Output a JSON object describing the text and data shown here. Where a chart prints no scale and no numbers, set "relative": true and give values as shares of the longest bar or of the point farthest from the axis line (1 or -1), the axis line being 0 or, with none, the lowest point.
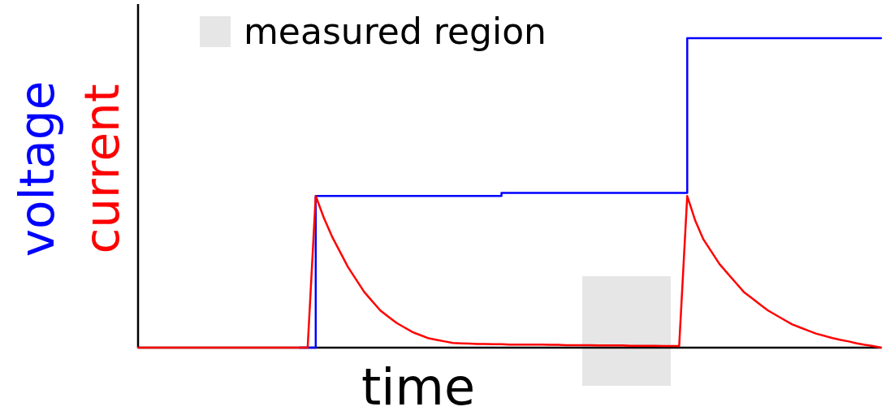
{
  "chart_data": {
    "type": "line",
    "relative": true,
    "xlabel": "time",
    "categories": [
      null,
      null,
      null,
      null,
      null,
      null,
      null,
      null,
      null,
      null,
      null,
      null,
      null,
      null,
      null,
      null,
      null,
      null,
      null,
      null,
      null,
      null,
      null,
      null,
      null,
      null,
      null,
      null,
      null,
      null,
      null,
      null,
      null,
      null,
      null,
      null,
      null,
      null,
      null,
      null,
      null,
      null,
      null,
      null,
      null,
      null,
      null,
      null,
      null,
      null,
      null,
      null,
      null,
      null,
      null,
      null,
      null,
      null,
      null,
      null,
      null,
      null,
      null,
      null,
      null,
      null,
      null,
      null,
      null,
      null,
      null,
      null,
      null,
      null,
      null,
      null,
      null,
      null,
      null,
      null,
      null,
      null,
      null,
      null,
      null,
      null,
      null,
      null,
      null,
      null,
      null,
      null,
      null
    ],
    "series": [
      {
        "name": "voltage",
        "type": "step",
        "color": "#0000ff",
        "values": [
          null,
          null,
          null,
          null,
          null,
          null,
          null,
          null,
          null,
          null,
          null,
          null,
          null,
          null,
          null,
          null,
          null,
          null,
          null,
          null,
          0,
          0,
          0.49,
          0.49,
          0.49,
          0.49,
          0.49,
          0.49,
          0.49,
          0.49,
          0.49,
          0.49,
          0.49,
          0.49,
          0.49,
          0.49,
          0.49,
          0.49,
          0.49,
          0.49,
          0.49,
          0.49,
          0.49,
          0.49,
          0.49,
          0.5,
          0.5,
          0.5,
          0.5,
          0.5,
          0.5,
          0.5,
          0.5,
          0.5,
          0.5,
          0.5,
          0.5,
          0.5,
          0.5,
          0.5,
          0.5,
          0.5,
          0.5,
          0.5,
          0.5,
          0.5,
          0.5,
          0.5,
          1,
          1,
          1,
          1,
          1,
          1,
          1,
          1,
          1,
          1,
          1,
          1,
          1,
          1,
          1,
          1,
          1,
          1,
          1,
          1,
          1,
          1,
          1,
          1,
          1
        ]
      },
      {
        "name": "current",
        "color": "#ff0000",
        "values": [
          0,
          0,
          0,
          0,
          0,
          0,
          0,
          0,
          0,
          0,
          0,
          0,
          0,
          0,
          0,
          0,
          0,
          0,
          0,
          0,
          0,
          0,
          0.49,
          0.42,
          0.36,
          0.31,
          0.26,
          0.22,
          0.18,
          0.15,
          0.12,
          0.1,
          0.08,
          0.065,
          0.05,
          0.04,
          0.03,
          0.025,
          0.02,
          0.015,
          0.014,
          0.013,
          0.012,
          0.012,
          0.011,
          0.011,
          0.01,
          0.01,
          0.01,
          0.01,
          0.01,
          0.009,
          0.009,
          0.008,
          0.008,
          0.008,
          0.008,
          0.007,
          0.007,
          0.007,
          0.007,
          0.006,
          0.006,
          0.006,
          0.006,
          0.005,
          0.005,
          0.005,
          0.49,
          0.41,
          0.35,
          0.31,
          0.27,
          0.24,
          0.21,
          0.18,
          0.16,
          0.14,
          0.12,
          0.105,
          0.09,
          0.075,
          0.065,
          0.055,
          0.045,
          0.038,
          0.031,
          0.025,
          0.02,
          0.014,
          0.009,
          0.005,
          0
        ]
      }
    ],
    "annotations": [
      "measured region"
    ]
  }
}
